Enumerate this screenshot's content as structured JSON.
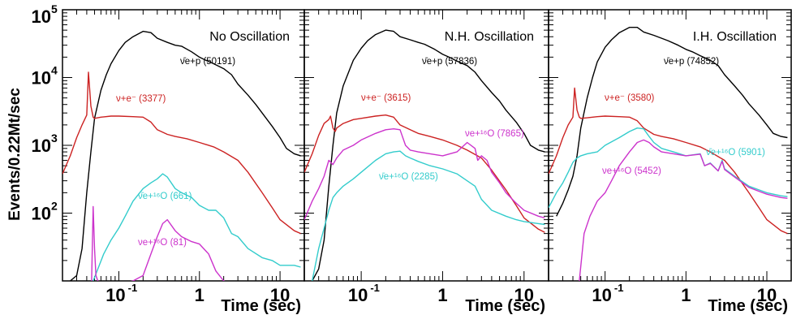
{
  "chart_data": [
    {
      "type": "line",
      "title": "No Oscillation",
      "xlabel": "Time (sec)",
      "ylabel": "Events/0.22Mt/sec",
      "xscale": "log",
      "yscale": "log",
      "xlim": [
        0.02,
        20
      ],
      "ylim": [
        10,
        100000
      ],
      "x_ticks": [
        "10",
        "1",
        "10"
      ],
      "y_ticks": [
        "10",
        "10",
        "10",
        "10"
      ],
      "y_exponents": [
        "5",
        "4",
        "3",
        "2"
      ],
      "series": [
        {
          "name": "ν̄e+p (50191)",
          "color": "#000000",
          "x": [
            0.025,
            0.03,
            0.035,
            0.04,
            0.045,
            0.05,
            0.06,
            0.07,
            0.08,
            0.1,
            0.12,
            0.15,
            0.2,
            0.25,
            0.3,
            0.4,
            0.5,
            0.6,
            0.8,
            1,
            1.2,
            1.5,
            2,
            2.5,
            3,
            4,
            5,
            6,
            8,
            10,
            12,
            15,
            18
          ],
          "y": [
            10,
            12,
            30,
            200,
            800,
            2500,
            6500,
            11000,
            16000,
            25000,
            33000,
            40000,
            48000,
            46000,
            38000,
            33000,
            30000,
            29000,
            24000,
            20000,
            18000,
            16000,
            13500,
            11000,
            8000,
            5500,
            4000,
            3000,
            1900,
            1300,
            900,
            750,
            700
          ]
        },
        {
          "name": "ν+e⁻ (3377)",
          "color": "#cc2222",
          "x": [
            0.02,
            0.025,
            0.03,
            0.035,
            0.04,
            0.042,
            0.045,
            0.048,
            0.05,
            0.06,
            0.08,
            0.1,
            0.15,
            0.2,
            0.25,
            0.3,
            0.4,
            0.5,
            0.7,
            1,
            1.5,
            2,
            3,
            4,
            6,
            8,
            10,
            15,
            18
          ],
          "y": [
            380,
            700,
            1300,
            2000,
            2800,
            12000,
            3800,
            2600,
            2500,
            2600,
            2700,
            2700,
            2650,
            2600,
            2200,
            1700,
            1450,
            1350,
            1250,
            1100,
            950,
            800,
            600,
            400,
            200,
            120,
            80,
            55,
            50
          ]
        },
        {
          "name": "ν̄e+¹⁶O (661)",
          "color": "#33cccc",
          "x": [
            0.048,
            0.055,
            0.065,
            0.08,
            0.1,
            0.12,
            0.15,
            0.2,
            0.25,
            0.3,
            0.35,
            0.4,
            0.5,
            0.6,
            0.8,
            1,
            1.3,
            1.6,
            2,
            2.5,
            3,
            4,
            6,
            8,
            10,
            15,
            18
          ],
          "y": [
            10,
            15,
            25,
            40,
            60,
            90,
            150,
            230,
            280,
            320,
            380,
            340,
            230,
            200,
            170,
            130,
            110,
            110,
            85,
            50,
            45,
            30,
            22,
            20,
            17,
            17,
            16
          ]
        },
        {
          "name": "νe+¹⁶O (81)",
          "color": "#cc33cc",
          "x": [
            0.046,
            0.048,
            0.05,
            0.052,
            0.055,
            0.06,
            0.07,
            0.1,
            0.15,
            0.2,
            0.25,
            0.3,
            0.35,
            0.4,
            0.5,
            0.6,
            0.8,
            1,
            1.3,
            1.6,
            2,
            2.5
          ],
          "y": [
            10,
            125,
            30,
            12,
            10,
            9,
            9,
            9,
            10,
            12,
            25,
            45,
            70,
            80,
            55,
            45,
            38,
            35,
            25,
            14,
            10,
            9
          ]
        }
      ]
    },
    {
      "type": "line",
      "title": "N.H. Oscillation",
      "xlabel": "Time (sec)",
      "xscale": "log",
      "yscale": "log",
      "xlim": [
        0.02,
        20
      ],
      "ylim": [
        10,
        100000
      ],
      "x_ticks": [
        "10",
        "1",
        "10"
      ],
      "series": [
        {
          "name": "ν̄e+p (57836)",
          "color": "#000000",
          "x": [
            0.025,
            0.03,
            0.035,
            0.04,
            0.045,
            0.05,
            0.06,
            0.07,
            0.08,
            0.1,
            0.12,
            0.15,
            0.2,
            0.25,
            0.3,
            0.4,
            0.5,
            0.6,
            0.8,
            1,
            1.2,
            1.5,
            2,
            2.5,
            3,
            4,
            5,
            6,
            8,
            10,
            12,
            15,
            18
          ],
          "y": [
            10,
            15,
            40,
            250,
            1000,
            3000,
            7500,
            12000,
            18000,
            27000,
            35000,
            43000,
            50000,
            48000,
            40000,
            36000,
            33000,
            31000,
            26000,
            22000,
            20000,
            17500,
            15000,
            12000,
            9000,
            6000,
            4500,
            3300,
            2200,
            1500,
            1000,
            850,
            800
          ]
        },
        {
          "name": "ν+e⁻ (3615)",
          "color": "#cc2222",
          "x": [
            0.02,
            0.025,
            0.03,
            0.035,
            0.04,
            0.042,
            0.045,
            0.048,
            0.05,
            0.06,
            0.08,
            0.1,
            0.15,
            0.2,
            0.25,
            0.3,
            0.4,
            0.5,
            0.7,
            1,
            1.5,
            2,
            3,
            4,
            6,
            8,
            10,
            15,
            18
          ],
          "y": [
            400,
            750,
            1400,
            2100,
            2400,
            2700,
            1800,
            1600,
            1800,
            2100,
            2400,
            2500,
            2700,
            2800,
            2600,
            2000,
            1700,
            1500,
            1350,
            1200,
            1000,
            850,
            650,
            430,
            220,
            130,
            85,
            58,
            52
          ]
        },
        {
          "name": "νe+¹⁶O (7865)",
          "color": "#cc33cc",
          "x": [
            0.02,
            0.025,
            0.03,
            0.035,
            0.04,
            0.045,
            0.05,
            0.06,
            0.08,
            0.1,
            0.15,
            0.2,
            0.25,
            0.3,
            0.35,
            0.4,
            0.5,
            0.7,
            1,
            1.5,
            2,
            2.5,
            2.7,
            3,
            3.5,
            4,
            5,
            6,
            8,
            10,
            15,
            18
          ],
          "y": [
            80,
            150,
            230,
            350,
            600,
            520,
            650,
            850,
            1000,
            1200,
            1500,
            1700,
            1750,
            1700,
            1000,
            850,
            800,
            750,
            700,
            800,
            1100,
            900,
            600,
            700,
            600,
            400,
            280,
            200,
            140,
            110,
            90,
            85
          ]
        },
        {
          "name": "ν̄e+¹⁶O (2285)",
          "color": "#33cccc",
          "x": [
            0.025,
            0.03,
            0.035,
            0.04,
            0.045,
            0.05,
            0.06,
            0.08,
            0.1,
            0.12,
            0.15,
            0.2,
            0.25,
            0.3,
            0.35,
            0.4,
            0.5,
            0.7,
            1,
            1.5,
            2,
            2.5,
            3,
            4,
            6,
            8,
            10,
            15,
            18
          ],
          "y": [
            10,
            30,
            60,
            110,
            170,
            200,
            250,
            320,
            400,
            480,
            600,
            750,
            800,
            820,
            700,
            650,
            580,
            500,
            450,
            380,
            300,
            250,
            160,
            110,
            90,
            80,
            75,
            70,
            68
          ]
        }
      ]
    },
    {
      "type": "line",
      "title": "I.H. Oscillation",
      "xlabel": "Time (sec)",
      "xscale": "log",
      "yscale": "log",
      "xlim": [
        0.02,
        20
      ],
      "ylim": [
        10,
        100000
      ],
      "x_ticks": [
        "10",
        "1",
        "10"
      ],
      "series": [
        {
          "name": "ν̄e+p (74852)",
          "color": "#000000",
          "x": [
            0.025,
            0.03,
            0.035,
            0.04,
            0.045,
            0.05,
            0.06,
            0.07,
            0.08,
            0.1,
            0.12,
            0.15,
            0.2,
            0.25,
            0.3,
            0.4,
            0.5,
            0.6,
            0.8,
            1,
            1.2,
            1.5,
            2,
            2.5,
            3,
            4,
            5,
            6,
            8,
            10,
            12,
            15,
            18
          ],
          "y": [
            90,
            140,
            220,
            350,
            700,
            1800,
            5000,
            10000,
            17000,
            28000,
            36000,
            46000,
            55000,
            55000,
            47000,
            42000,
            38000,
            35000,
            30000,
            26000,
            24000,
            21000,
            18000,
            15000,
            11000,
            7500,
            5500,
            4100,
            2800,
            2000,
            1500,
            1350,
            1300
          ]
        },
        {
          "name": "ν+e⁻ (3580)",
          "color": "#cc2222",
          "x": [
            0.02,
            0.025,
            0.03,
            0.035,
            0.04,
            0.042,
            0.045,
            0.048,
            0.05,
            0.06,
            0.08,
            0.1,
            0.15,
            0.2,
            0.25,
            0.3,
            0.4,
            0.5,
            0.7,
            1,
            1.5,
            2,
            3,
            4,
            6,
            8,
            10,
            15,
            18
          ],
          "y": [
            380,
            700,
            1300,
            2000,
            2600,
            7000,
            3300,
            2600,
            2500,
            2550,
            2650,
            2700,
            2650,
            2600,
            2300,
            1800,
            1450,
            1350,
            1250,
            1100,
            950,
            800,
            600,
            400,
            200,
            120,
            80,
            55,
            50
          ]
        },
        {
          "name": "ν̄e+¹⁶O (5901)",
          "color": "#33cccc",
          "x": [
            0.02,
            0.025,
            0.03,
            0.035,
            0.04,
            0.045,
            0.05,
            0.06,
            0.08,
            0.1,
            0.15,
            0.2,
            0.25,
            0.3,
            0.35,
            0.4,
            0.5,
            0.7,
            1,
            1.5,
            1.7,
            2,
            2.5,
            2.8,
            3,
            4,
            6,
            8,
            10,
            15,
            18
          ],
          "y": [
            120,
            200,
            280,
            400,
            560,
            650,
            700,
            750,
            800,
            1000,
            1300,
            1600,
            1800,
            1750,
            1350,
            1100,
            900,
            800,
            700,
            750,
            500,
            550,
            420,
            600,
            450,
            350,
            250,
            220,
            200,
            180,
            175
          ]
        },
        {
          "name": "νe+¹⁶O (5452)",
          "color": "#cc33cc",
          "x": [
            0.048,
            0.055,
            0.065,
            0.08,
            0.1,
            0.12,
            0.15,
            0.2,
            0.25,
            0.3,
            0.35,
            0.4,
            0.5,
            0.7,
            1,
            1.5,
            1.7,
            2,
            2.5,
            2.8,
            3,
            4,
            6,
            8,
            10,
            15,
            18
          ],
          "y": [
            10,
            50,
            90,
            150,
            200,
            300,
            500,
            800,
            1100,
            1200,
            1100,
            950,
            800,
            750,
            700,
            740,
            500,
            540,
            420,
            580,
            440,
            340,
            240,
            210,
            190,
            170,
            165
          ]
        }
      ]
    }
  ],
  "annotations": [
    [
      {
        "label": "ν̄e+p (50191)",
        "color": "#000000"
      },
      {
        "label": "ν+e⁻ (3377)",
        "color": "#cc2222"
      },
      {
        "label": "ν̄e+¹⁶O (661)",
        "color": "#33cccc"
      },
      {
        "label": "νe+¹⁶O (81)",
        "color": "#cc33cc"
      }
    ],
    [
      {
        "label": "ν̄e+p (57836)",
        "color": "#000000"
      },
      {
        "label": "ν+e⁻ (3615)",
        "color": "#cc2222"
      },
      {
        "label": "νe+¹⁶O (7865)",
        "color": "#cc33cc"
      },
      {
        "label": "ν̄e+¹⁶O (2285)",
        "color": "#33cccc"
      }
    ],
    [
      {
        "label": "ν̄e+p (74852)",
        "color": "#000000"
      },
      {
        "label": "ν+e⁻ (3580)",
        "color": "#cc2222"
      },
      {
        "label": "ν̄e+¹⁶O (5901)",
        "color": "#33cccc"
      },
      {
        "label": "νe+¹⁶O (5452)",
        "color": "#cc33cc"
      }
    ]
  ]
}
